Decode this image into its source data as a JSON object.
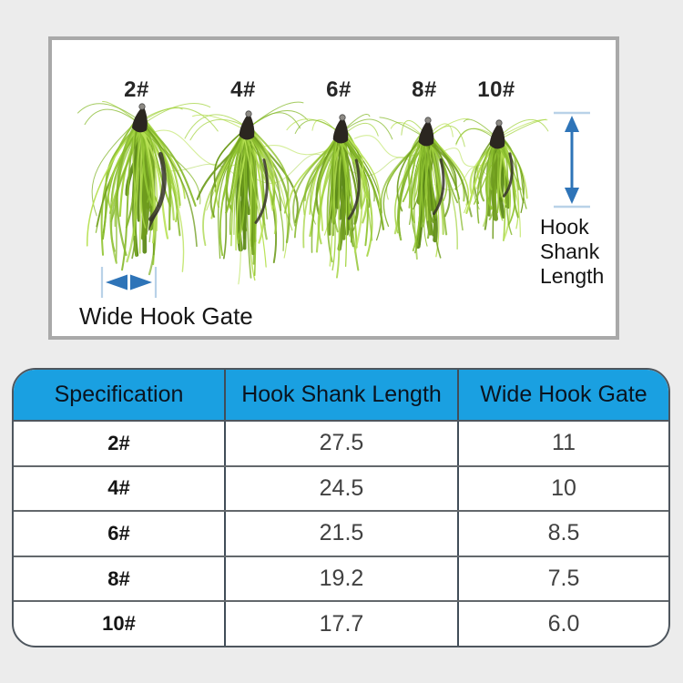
{
  "figure": {
    "sizes": [
      "2#",
      "4#",
      "6#",
      "8#",
      "10#"
    ],
    "shank_label": [
      "Hook",
      "Shank",
      "Length"
    ],
    "gate_label": "Wide Hook Gate",
    "colors": {
      "arrow": "#2e74b8",
      "tick": "#b9d2e8",
      "green_palette": [
        "#6f9c1d",
        "#7fb226",
        "#92c533",
        "#a4d441",
        "#b9e257",
        "#86b92b"
      ],
      "green_dark": "#5d8a18",
      "head_dark": "#2b2620",
      "head_tip": "#8d8a84",
      "panel_border": "#a9a9a9"
    }
  },
  "table": {
    "header_bg": "#1aa0e1",
    "border_color": "#4e565e",
    "columns": [
      "Specification",
      "Hook Shank Length",
      "Wide Hook Gate"
    ],
    "rows": [
      {
        "spec": "2#",
        "shank": "27.5",
        "gate": "11"
      },
      {
        "spec": "4#",
        "shank": "24.5",
        "gate": "10"
      },
      {
        "spec": "6#",
        "shank": "21.5",
        "gate": "8.5"
      },
      {
        "spec": "8#",
        "shank": "19.2",
        "gate": "7.5"
      },
      {
        "spec": "10#",
        "shank": "17.7",
        "gate": "6.0"
      }
    ]
  }
}
